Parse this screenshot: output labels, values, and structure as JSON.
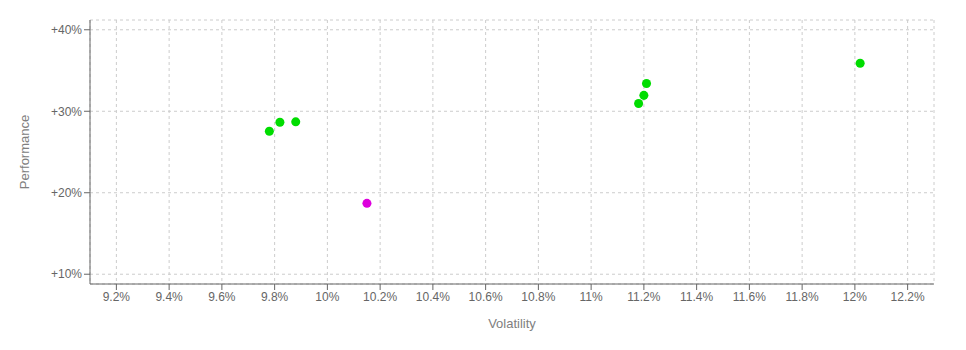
{
  "chart_data": {
    "type": "scatter",
    "xlabel": "Volatility",
    "ylabel": "Performance",
    "xlim": [
      0.091,
      0.123
    ],
    "ylim": [
      0.088,
      0.412
    ],
    "xticks": [
      {
        "value": 0.092,
        "label": "9.2%"
      },
      {
        "value": 0.094,
        "label": "9.4%"
      },
      {
        "value": 0.096,
        "label": "9.6%"
      },
      {
        "value": 0.098,
        "label": "9.8%"
      },
      {
        "value": 0.1,
        "label": "10%"
      },
      {
        "value": 0.102,
        "label": "10.2%"
      },
      {
        "value": 0.104,
        "label": "10.4%"
      },
      {
        "value": 0.106,
        "label": "10.6%"
      },
      {
        "value": 0.108,
        "label": "10.8%"
      },
      {
        "value": 0.11,
        "label": "11%"
      },
      {
        "value": 0.112,
        "label": "11.2%"
      },
      {
        "value": 0.114,
        "label": "11.4%"
      },
      {
        "value": 0.116,
        "label": "11.6%"
      },
      {
        "value": 0.118,
        "label": "11.8%"
      },
      {
        "value": 0.12,
        "label": "12%"
      },
      {
        "value": 0.122,
        "label": "12.2%"
      }
    ],
    "yticks": [
      {
        "value": 0.1,
        "label": "+10%"
      },
      {
        "value": 0.2,
        "label": "+20%"
      },
      {
        "value": 0.3,
        "label": "+30%"
      },
      {
        "value": 0.4,
        "label": "+40%"
      }
    ],
    "grid": true,
    "series": [
      {
        "color": "#00dd00",
        "x": [
          0.0982,
          0.0988,
          0.0978,
          0.1121,
          0.112,
          0.1118,
          0.1202
        ],
        "values": [
          0.2865,
          0.287,
          0.2755,
          0.334,
          0.3195,
          0.3095,
          0.359
        ]
      },
      {
        "color": "#dd00dd",
        "x": [
          0.1015
        ],
        "values": [
          0.187
        ]
      }
    ]
  }
}
